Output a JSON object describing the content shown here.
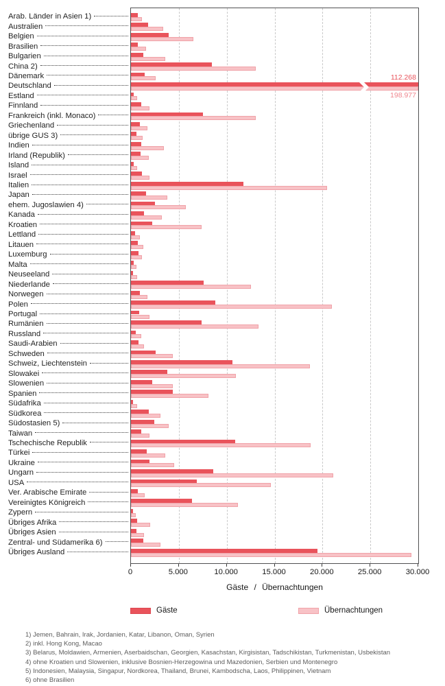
{
  "chart_data": {
    "type": "bar",
    "orientation": "horizontal",
    "xlabel": "Gäste / Übernachtungen",
    "xlim": [
      0,
      30000
    ],
    "x_ticks": [
      0,
      5000,
      10000,
      15000,
      20000,
      25000,
      30000
    ],
    "x_tick_labels": [
      "0",
      "5.000",
      "10.000",
      "15.000",
      "20.000",
      "25.000",
      "30.000"
    ],
    "grid": "vertical-dashed",
    "legend_position": "bottom",
    "categories": [
      "Arab. Länder in Asien 1)",
      "Australien",
      "Belgien",
      "Brasilien",
      "Bulgarien",
      "China 2)",
      "Dänemark",
      "Deutschland",
      "Estland",
      "Finnland",
      "Frankreich (inkl. Monaco)",
      "Griechenland",
      "übrige GUS 3)",
      "Indien",
      "Irland (Republik)",
      "Island",
      "Israel",
      "Italien",
      "Japan",
      "ehem. Jugoslawien 4)",
      "Kanada",
      "Kroatien",
      "Lettland",
      "Litauen",
      "Luxemburg",
      "Malta",
      "Neuseeland",
      "Niederlande",
      "Norwegen",
      "Polen",
      "Portugal",
      "Rumänien",
      "Russland",
      "Saudi-Arabien",
      "Schweden",
      "Schweiz, Liechtenstein",
      "Slowakei",
      "Slowenien",
      "Spanien",
      "Südafrika",
      "Südkorea",
      "Südostasien 5)",
      "Taiwan",
      "Tschechische Republik",
      "Türkei",
      "Ukraine",
      "Ungarn",
      "USA",
      "Ver. Arabische Emirate",
      "Vereinigtes Königreich",
      "Zypern",
      "Übriges Afrika",
      "Übriges Asien",
      "Zentral- und Südamerika 6)",
      "Übriges Ausland"
    ],
    "series": [
      {
        "name": "Gäste",
        "color": "#e9535b",
        "values": [
          740,
          1800,
          3950,
          700,
          1300,
          8450,
          1400,
          112268,
          310,
          1050,
          7500,
          900,
          600,
          1050,
          1000,
          300,
          1150,
          11750,
          1600,
          2500,
          1350,
          2200,
          400,
          700,
          760,
          310,
          250,
          7600,
          900,
          8800,
          850,
          7400,
          480,
          760,
          2570,
          10600,
          3800,
          2200,
          4400,
          200,
          1850,
          2400,
          1070,
          10900,
          1660,
          1950,
          8600,
          6900,
          720,
          6350,
          220,
          620,
          550,
          1290,
          19480
        ]
      },
      {
        "name": "Übernachtungen",
        "color": "#f8c2c6",
        "values": [
          1120,
          3350,
          6500,
          1600,
          3600,
          13000,
          2600,
          198977,
          640,
          1950,
          13000,
          1750,
          1200,
          3450,
          1840,
          620,
          1950,
          20480,
          3780,
          5700,
          3200,
          7400,
          920,
          1260,
          1160,
          590,
          630,
          12500,
          1700,
          20950,
          1930,
          13350,
          1090,
          1380,
          4400,
          18670,
          10970,
          4360,
          8100,
          640,
          3100,
          3930,
          1900,
          18740,
          3570,
          4520,
          21140,
          14640,
          1450,
          11190,
          480,
          1980,
          1360,
          3050,
          29290
        ]
      }
    ],
    "break_annotation": {
      "category": "Deutschland",
      "labels": [
        "112.268",
        "198.977"
      ],
      "values": [
        112268,
        198977
      ]
    }
  },
  "legend": {
    "items": [
      {
        "label": "Gäste",
        "color": "#e9535b"
      },
      {
        "label": "Übernachtungen",
        "color": "#f8c2c6"
      }
    ]
  },
  "footnotes": [
    "1) Jemen, Bahrain, Irak, Jordanien, Katar, Libanon, Oman, Syrien",
    "2) inkl. Hong Kong, Macao",
    "3) Belarus, Moldawien, Armenien, Aserbaidschan, Georgien, Kasachstan, Kirgisistan, Tadschikistan, Turkmenistan, Usbekistan",
    "4) ohne Kroatien und Slowenien, inklusive Bosnien-Herzegowina und Mazedonien, Serbien und Montenegro",
    "5) Indonesien, Malaysia, Singapur, Nordkorea, Thailand, Brunei, Kambodscha, Laos, Philippinen, Vietnam",
    "6) ohne Brasilien"
  ]
}
